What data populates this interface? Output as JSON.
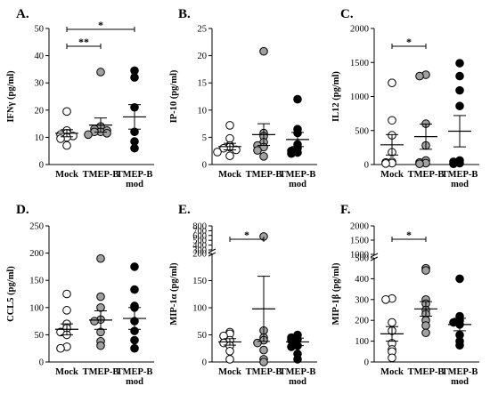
{
  "chart_data": [
    {
      "type": "scatter",
      "panel_label": "A.",
      "ylabel": "IFNγ (pg/ml)",
      "ylim": [
        0,
        50
      ],
      "yticks": [
        "0",
        "10",
        "20",
        "30",
        "40",
        "50"
      ],
      "categories": [
        "Mock",
        "TMEP-B",
        "TMEP-B mod"
      ],
      "series": [
        {
          "values": [
            19.5,
            12.5,
            11.5,
            11,
            10.5,
            10,
            9.5,
            7
          ],
          "mean": 11.5,
          "sem": 1.3
        },
        {
          "values": [
            34,
            14,
            13,
            12.5,
            12,
            12,
            11.5,
            11
          ],
          "mean": 14.5,
          "sem": 2.6
        },
        {
          "values": [
            34.5,
            32,
            21,
            12,
            8.5,
            6
          ],
          "mean": 17.5,
          "sem": 4.5
        }
      ],
      "significance": [
        {
          "from": 0,
          "to": 1,
          "label": "**"
        },
        {
          "from": 0,
          "to": 2,
          "label": "*"
        }
      ]
    },
    {
      "type": "scatter",
      "panel_label": "B.",
      "ylabel": "IP-10 (pg/ml)",
      "ylim": [
        0,
        25
      ],
      "yticks": [
        "0",
        "5",
        "10",
        "15",
        "20",
        "25"
      ],
      "categories": [
        "Mock",
        "TMEP-B",
        "TMEP-B mod"
      ],
      "series": [
        {
          "values": [
            7.2,
            4.8,
            3.5,
            3.2,
            3,
            2.7,
            2.3,
            1.6
          ],
          "mean": 3.3,
          "sem": 0.6
        },
        {
          "values": [
            20.8,
            5.8,
            5.2,
            4.1,
            3.5,
            3.2,
            2.6,
            1.5
          ],
          "mean": 5.5,
          "sem": 2
        },
        {
          "values": [
            12,
            6.5,
            5.8,
            3.7,
            3,
            2.5,
            2.2,
            2
          ],
          "mean": 4.6,
          "sem": 1.3
        }
      ],
      "significance": []
    },
    {
      "type": "scatter",
      "panel_label": "C.",
      "ylabel": "IL12 (pg/ml)",
      "ylim": [
        0,
        2000
      ],
      "yticks": [
        "0",
        "500",
        "1000",
        "1500",
        "2000"
      ],
      "categories": [
        "Mock",
        "TMEP-B",
        "TMEP-B mod"
      ],
      "series": [
        {
          "values": [
            1200,
            650,
            430,
            180,
            40,
            30,
            20,
            15
          ],
          "mean": 290,
          "sem": 150
        },
        {
          "values": [
            1320,
            1300,
            600,
            280,
            60,
            30,
            20,
            10
          ],
          "mean": 410,
          "sem": 185
        },
        {
          "values": [
            1490,
            1300,
            1090,
            860,
            60,
            40,
            20,
            10
          ],
          "mean": 490,
          "sem": 230
        }
      ],
      "significance": [
        {
          "from": 0,
          "to": 1,
          "label": "*"
        }
      ]
    },
    {
      "type": "scatter",
      "panel_label": "D.",
      "ylabel": "CCL5 (pg/ml)",
      "ylim": [
        0,
        250
      ],
      "yticks": [
        "0",
        "50",
        "100",
        "150",
        "200",
        "250"
      ],
      "categories": [
        "Mock",
        "TMEP-B",
        "TMEP-B mod"
      ],
      "series": [
        {
          "values": [
            125,
            95,
            70,
            62,
            55,
            50,
            28,
            25
          ],
          "mean": 60,
          "sem": 10
        },
        {
          "values": [
            190,
            120,
            100,
            78,
            75,
            55,
            38,
            30
          ],
          "mean": 77,
          "sem": 17
        },
        {
          "values": [
            175,
            133,
            103,
            100,
            75,
            57,
            40,
            25
          ],
          "mean": 80,
          "sem": 20
        }
      ],
      "significance": []
    },
    {
      "type": "scatter",
      "panel_label": "E.",
      "ylabel": "MIP-1α (pg/ml)",
      "axis_break": {
        "at": 200,
        "upper_range": [
          300,
          800
        ]
      },
      "ylim": [
        0,
        800
      ],
      "yticks": [
        "0",
        "50",
        "100",
        "150",
        "200",
        "300",
        "400",
        "500",
        "600",
        "700",
        "800"
      ],
      "categories": [
        "Mock",
        "TMEP-B",
        "TMEP-B mod"
      ],
      "series": [
        {
          "values": [
            55,
            52,
            48,
            40,
            35,
            30,
            20,
            5
          ],
          "mean": 37,
          "sem": 6
        },
        {
          "values": [
            580,
            58,
            45,
            40,
            35,
            22,
            5,
            0
          ],
          "mean": 98,
          "sem": 60
        },
        {
          "values": [
            50,
            45,
            42,
            40,
            30,
            28,
            15,
            5
          ],
          "mean": 37,
          "sem": 7
        }
      ],
      "significance": [
        {
          "from": 0,
          "to": 1,
          "label": "*"
        }
      ]
    },
    {
      "type": "scatter",
      "panel_label": "F.",
      "ylabel": "MIP-1β (pg/ml)",
      "axis_break": {
        "at": 500,
        "upper_range": [
          1000,
          2000
        ]
      },
      "ylim": [
        0,
        2000
      ],
      "yticks": [
        "0",
        "100",
        "200",
        "300",
        "400",
        "500",
        "1000",
        "1500",
        "2000"
      ],
      "categories": [
        "Mock",
        "TMEP-B",
        "TMEP-B mod"
      ],
      "series": [
        {
          "values": [
            305,
            300,
            190,
            150,
            90,
            60,
            50,
            20
          ],
          "mean": 135,
          "sem": 35
        },
        {
          "values": [
            450,
            440,
            300,
            280,
            250,
            230,
            200,
            175,
            140
          ],
          "mean": 255,
          "sem": 35
        },
        {
          "values": [
            400,
            220,
            200,
            190,
            180,
            130,
            100,
            80
          ],
          "mean": 180,
          "sem": 30
        }
      ],
      "significance": [
        {
          "from": 0,
          "to": 1,
          "label": "*"
        }
      ]
    }
  ],
  "styles": {
    "group_fills": [
      "#ffffff",
      "#a0a0a0",
      "#000000"
    ],
    "marker_stroke": "#000000",
    "axis_color": "#000000"
  }
}
